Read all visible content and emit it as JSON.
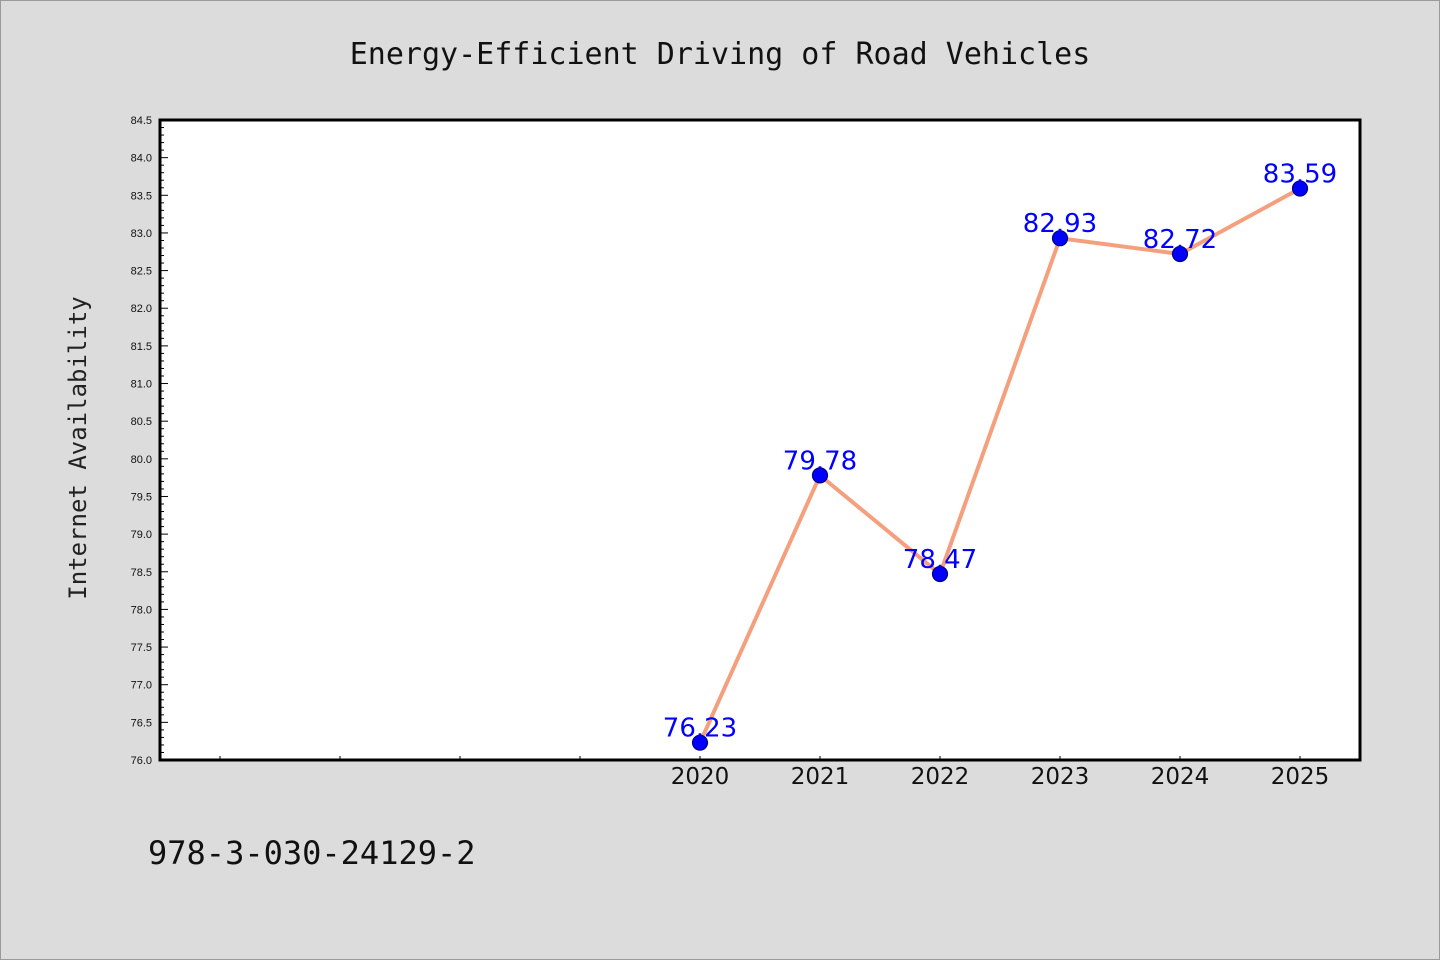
{
  "chart_data": {
    "type": "line",
    "title": "Energy-Efficient Driving of Road Vehicles",
    "xlabel": "",
    "ylabel": "Internet Availability",
    "categories": [
      "2020",
      "2021",
      "2022",
      "2023",
      "2024",
      "2025"
    ],
    "series": [
      {
        "values": [
          76.23,
          79.78,
          78.47,
          82.93,
          82.72,
          83.59
        ],
        "data_labels": [
          "76.23",
          "79.78",
          "78.47",
          "82.93",
          "82.72",
          "83.59"
        ]
      }
    ],
    "ylim": [
      76.0,
      84.5
    ],
    "yticks": [
      "76.0",
      "76.5",
      "77.0",
      "77.5",
      "78.0",
      "78.5",
      "79.0",
      "79.5",
      "80.0",
      "80.5",
      "81.0",
      "81.5",
      "82.0",
      "82.5",
      "83.0",
      "83.5",
      "84.0",
      "84.5"
    ],
    "x_slots_total": 10,
    "grid": false,
    "legend": "none",
    "colors": {
      "line": "#f4a07e",
      "marker_fill": "#0000ff",
      "marker_edge": "#000080",
      "data_label": "#0000ff",
      "plot_background": "#ffffff",
      "figure_background": "#dcdcdc"
    }
  },
  "footer": {
    "text": "978-3-030-24129-2"
  }
}
